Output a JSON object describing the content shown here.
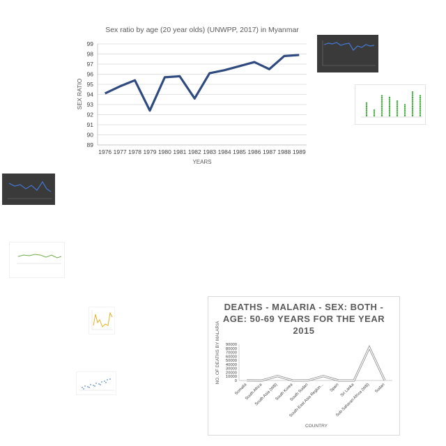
{
  "chart_data": [
    {
      "id": "main",
      "type": "line",
      "title": "Sex ratio by age (20 year olds) (UNWPP, 2017) in Myanmar",
      "xlabel": "YEARS",
      "ylabel": "SEX RATIO",
      "ylim": [
        89,
        99
      ],
      "yticks": [
        "89",
        "90",
        "91",
        "92",
        "93",
        "94",
        "95",
        "96",
        "97",
        "98",
        "99"
      ],
      "grid": true,
      "categories": [
        "1976",
        "1977",
        "1978",
        "1979",
        "1980",
        "1981",
        "1982",
        "1983",
        "1984",
        "1985",
        "1986",
        "1987",
        "1988",
        "1989"
      ],
      "series": [
        {
          "values": [
            94.1,
            94.8,
            95.4,
            92.4,
            95.7,
            95.8,
            93.6,
            96.1,
            96.4,
            96.8,
            97.2,
            96.5,
            97.8,
            97.9
          ],
          "color": "#2e4a7e"
        }
      ]
    },
    {
      "id": "malaria",
      "type": "line",
      "title": "DEATHS - MALARIA - SEX: BOTH - AGE: 50-69 YEARS FOR THE YEAR 2015",
      "xlabel": "COUNTRY",
      "ylabel": "NO. OF DEATHS BY MALARIA",
      "ylim": [
        0,
        90000
      ],
      "yticks": [
        "0",
        "10000",
        "20000",
        "30000",
        "40000",
        "50000",
        "60000",
        "70000",
        "80000",
        "90000"
      ],
      "grid": false,
      "categories": [
        "Somalia",
        "South Africa",
        "South Asia (WB)",
        "South Korea",
        "South Sudan",
        "South-East Asia Region...",
        "Spain",
        "Sri Lanka",
        "Sub-Saharan Africa (WB)",
        "Sudan"
      ],
      "series": [
        {
          "values": [
            150,
            100,
            11000,
            5,
            200,
            11000,
            0,
            0,
            82000,
            500
          ],
          "color": "#8a8a8a"
        }
      ]
    }
  ],
  "thumbnails": {
    "top_right_dark": {
      "color": "#4472c4"
    },
    "green_dots": {
      "color": "#3aaa35"
    },
    "left_dark": {
      "color": "#4472c4"
    },
    "left_light": {
      "color": "#70ad47"
    },
    "yellow_small": {
      "color": "#e8b020"
    },
    "scatter_small": {
      "color": "#5b8dd6"
    }
  }
}
